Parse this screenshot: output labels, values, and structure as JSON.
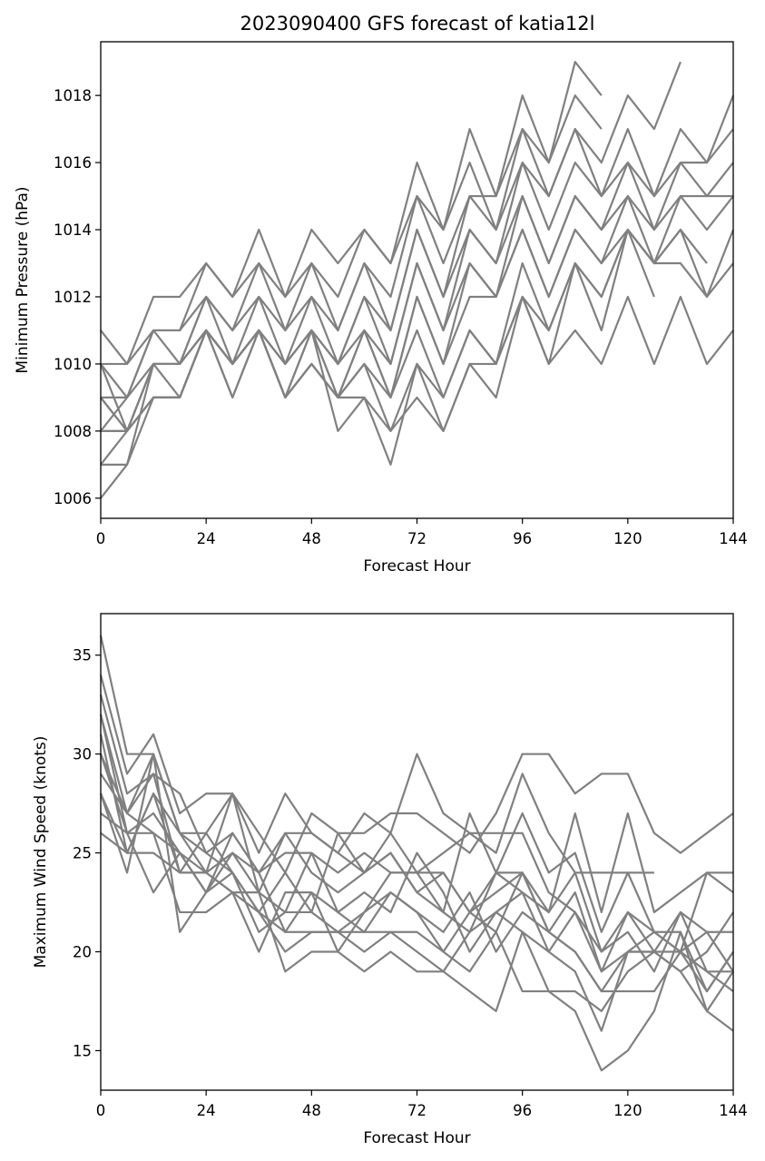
{
  "chart_data": [
    {
      "type": "line",
      "title": "2023090400 GFS forecast of katia12l",
      "xlabel": "Forecast Hour",
      "ylabel": "Minimum Pressure (hPa)",
      "xlim": [
        0,
        144
      ],
      "ylim": [
        1005.4,
        1019.6
      ],
      "xticks": [
        0,
        24,
        48,
        72,
        96,
        120,
        144
      ],
      "yticks": [
        1006,
        1008,
        1010,
        1012,
        1014,
        1016,
        1018
      ],
      "color": "#808080",
      "grid": false,
      "x": [
        0,
        6,
        12,
        18,
        24,
        30,
        36,
        42,
        48,
        54,
        60,
        66,
        72,
        78,
        84,
        90,
        96,
        102,
        108,
        114,
        120,
        126,
        132,
        138,
        144
      ],
      "series": [
        {
          "values": [
            1011,
            1010,
            1012,
            1012,
            1013,
            1012,
            1014,
            1012,
            1014,
            1013,
            1014,
            1013,
            1016,
            1014,
            1017,
            1015,
            1018,
            1016,
            1019,
            1018,
            null,
            null,
            null,
            null,
            null
          ]
        },
        {
          "values": [
            1010,
            1010,
            1011,
            1011,
            1013,
            1012,
            1013,
            1012,
            1013,
            1012,
            1014,
            1013,
            1015,
            1014,
            1016,
            1014,
            1017,
            1016,
            1018,
            1017,
            null,
            null,
            null,
            null,
            null
          ]
        },
        {
          "values": [
            1010,
            1009,
            1011,
            1011,
            1012,
            1011,
            1013,
            1011,
            1013,
            1011,
            1013,
            1012,
            1015,
            1013,
            1015,
            1015,
            1017,
            1015,
            1017,
            1016,
            1018,
            1017,
            1019,
            null,
            null
          ]
        },
        {
          "values": [
            1009,
            1009,
            1011,
            1010,
            1012,
            1011,
            1012,
            1011,
            1012,
            1011,
            1013,
            1011,
            1014,
            1012,
            1015,
            1014,
            1016,
            1015,
            1017,
            1015,
            1017,
            1015,
            1017,
            1016,
            1018
          ]
        },
        {
          "values": [
            1009,
            1008,
            1010,
            1010,
            1012,
            1010,
            1012,
            1010,
            1012,
            1010,
            1012,
            1011,
            1014,
            1012,
            1014,
            1013,
            1016,
            1014,
            1016,
            1015,
            1016,
            1015,
            1016,
            1016,
            1017
          ]
        },
        {
          "values": [
            1008,
            1008,
            1010,
            1010,
            1011,
            1010,
            1011,
            1010,
            1011,
            1010,
            1012,
            1010,
            1013,
            1011,
            1014,
            1013,
            1015,
            1013,
            1015,
            1014,
            1016,
            1014,
            1016,
            1015,
            1016
          ]
        },
        {
          "values": [
            1008,
            1009,
            1010,
            1009,
            1011,
            1010,
            1011,
            1009,
            1011,
            1009,
            1011,
            1010,
            1013,
            1011,
            1013,
            1012,
            1015,
            1013,
            1015,
            1014,
            1015,
            1014,
            1015,
            1014,
            1015
          ]
        },
        {
          "values": [
            1007,
            1008,
            1009,
            1009,
            1011,
            1010,
            1011,
            1009,
            1011,
            1009,
            1011,
            1009,
            1012,
            1010,
            1013,
            1012,
            1014,
            1012,
            1014,
            1013,
            1015,
            1013,
            1015,
            1015,
            1015
          ]
        },
        {
          "values": [
            1007,
            1007,
            1010,
            1010,
            1011,
            1009,
            1011,
            1010,
            1011,
            1010,
            1011,
            1009,
            1012,
            1010,
            1012,
            1012,
            1014,
            1012,
            1014,
            1013,
            1014,
            1013,
            1014,
            1013,
            null
          ]
        },
        {
          "values": [
            1006,
            1007,
            1009,
            1009,
            1011,
            1010,
            1011,
            1009,
            1010,
            1009,
            1010,
            1009,
            1011,
            1009,
            1011,
            1010,
            1013,
            1011,
            1013,
            1012,
            1014,
            1013,
            1014,
            1012,
            1014
          ]
        },
        {
          "values": [
            1009,
            1008,
            1010,
            1010,
            1011,
            1010,
            1011,
            1009,
            1010,
            1009,
            1010,
            1008,
            1010,
            1009,
            1011,
            1010,
            1012,
            1011,
            1013,
            1012,
            1014,
            1012,
            null,
            null,
            null
          ]
        },
        {
          "values": [
            1008,
            1008,
            1009,
            1009,
            1011,
            1010,
            1011,
            1010,
            1011,
            1008,
            1009,
            1007,
            1010,
            1008,
            1010,
            1009,
            1012,
            1010,
            1013,
            1011,
            1014,
            1013,
            1013,
            1012,
            1013
          ]
        },
        {
          "values": [
            1010,
            1008,
            1009,
            1009,
            1011,
            1009,
            1011,
            1009,
            1010,
            1009,
            1009,
            1008,
            1009,
            1008,
            1010,
            1010,
            1012,
            1010,
            1011,
            1010,
            1012,
            1010,
            1012,
            1010,
            1011
          ]
        }
      ]
    },
    {
      "type": "line",
      "title": "",
      "xlabel": "Forecast Hour",
      "ylabel": "Maximum Wind Speed (knots)",
      "xlim": [
        0,
        144
      ],
      "ylim": [
        13,
        37.1
      ],
      "xticks": [
        0,
        24,
        48,
        72,
        96,
        120,
        144
      ],
      "yticks": [
        15,
        20,
        25,
        30,
        35
      ],
      "color": "#808080",
      "grid": false,
      "x": [
        0,
        6,
        12,
        18,
        24,
        30,
        36,
        42,
        48,
        54,
        60,
        66,
        72,
        78,
        84,
        90,
        96,
        102,
        108,
        114,
        120,
        126,
        132,
        138,
        144
      ],
      "series": [
        {
          "values": [
            36,
            30,
            30,
            26,
            26,
            28,
            26,
            24,
            27,
            26,
            26,
            27,
            27,
            26,
            25,
            27,
            30,
            30,
            28,
            29,
            29,
            26,
            25,
            26,
            27
          ]
        },
        {
          "values": [
            34,
            29,
            31,
            27,
            28,
            28,
            25,
            28,
            26,
            25,
            27,
            26,
            30,
            27,
            26,
            25,
            29,
            26,
            24,
            24,
            24,
            24,
            null,
            null,
            null
          ]
        },
        {
          "values": [
            33,
            28,
            29,
            28,
            25,
            26,
            24,
            25,
            25,
            24,
            25,
            24,
            24,
            24,
            22,
            24,
            24,
            22,
            27,
            22,
            27,
            22,
            23,
            24,
            24
          ]
        },
        {
          "values": [
            32,
            27,
            30,
            26,
            24,
            28,
            23,
            26,
            26,
            25,
            24,
            25,
            23,
            22,
            27,
            24,
            27,
            24,
            25,
            21,
            24,
            21,
            20,
            24,
            23
          ]
        },
        {
          "values": [
            32,
            26,
            27,
            25,
            23,
            25,
            24,
            26,
            24,
            23,
            24,
            26,
            24,
            25,
            26,
            26,
            26,
            23,
            22,
            20,
            22,
            21,
            21,
            18,
            20
          ]
        },
        {
          "values": [
            31,
            25,
            28,
            24,
            26,
            24,
            22,
            24,
            22,
            26,
            24,
            25,
            23,
            24,
            22,
            23,
            24,
            21,
            23,
            19,
            22,
            20,
            19,
            20,
            22
          ]
        },
        {
          "values": [
            30,
            27,
            29,
            24,
            24,
            25,
            23,
            22,
            25,
            22,
            23,
            22,
            25,
            23,
            20,
            22,
            23,
            22,
            24,
            20,
            21,
            19,
            22,
            21,
            21
          ]
        },
        {
          "values": [
            30,
            26,
            26,
            22,
            22,
            23,
            20,
            23,
            23,
            22,
            21,
            23,
            22,
            21,
            23,
            20,
            22,
            21,
            20,
            18,
            20,
            20,
            22,
            19,
            19
          ]
        },
        {
          "values": [
            29,
            27,
            26,
            25,
            23,
            26,
            24,
            21,
            23,
            20,
            22,
            24,
            24,
            22,
            21,
            24,
            23,
            20,
            22,
            19,
            20,
            21,
            20,
            21,
            19
          ]
        },
        {
          "values": [
            28,
            25,
            28,
            26,
            25,
            24,
            21,
            22,
            22,
            21,
            22,
            23,
            22,
            20,
            22,
            21,
            24,
            21,
            20,
            18,
            18,
            18,
            20,
            19,
            18
          ]
        },
        {
          "values": [
            28,
            24,
            30,
            21,
            23,
            24,
            22,
            20,
            21,
            21,
            20,
            21,
            20,
            19,
            21,
            22,
            21,
            20,
            19,
            16,
            20,
            20,
            20,
            18,
            20
          ]
        },
        {
          "values": [
            27,
            26,
            23,
            25,
            24,
            23,
            23,
            19,
            20,
            20,
            19,
            20,
            19,
            19,
            18,
            17,
            21,
            18,
            18,
            17,
            19,
            20,
            19,
            17,
            19
          ]
        },
        {
          "values": [
            26,
            25,
            25,
            24,
            24,
            23,
            22,
            21,
            21,
            21,
            21,
            21,
            21,
            20,
            19,
            21,
            18,
            18,
            17,
            14,
            15,
            17,
            21,
            17,
            16
          ]
        }
      ]
    }
  ]
}
